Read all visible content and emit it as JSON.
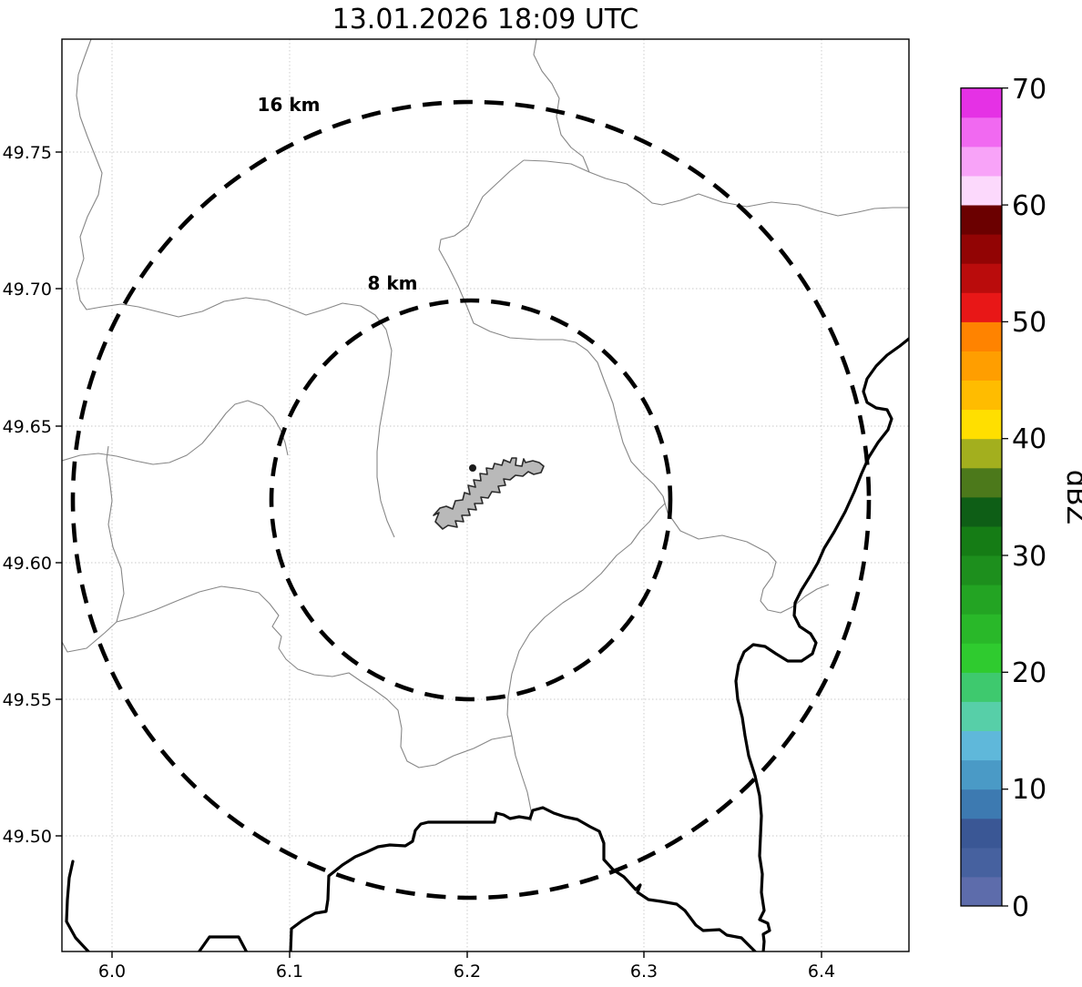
{
  "title": "13.01.2026 18:09 UTC",
  "map": {
    "x_axis": {
      "tick_labels": [
        "6.0",
        "6.1",
        "6.2",
        "6.3",
        "6.4"
      ]
    },
    "y_axis": {
      "tick_labels": [
        "49.75",
        "49.70",
        "49.65",
        "49.60",
        "49.55",
        "49.50"
      ]
    },
    "range_rings": {
      "outer_label": "16 km",
      "inner_label": "8 km"
    },
    "features": {
      "city_shape": "gray filled commune polygon near map center",
      "radar_site_marker": "small dark dot on city shape",
      "thick_lines": "country borders / Moselle river (black)",
      "thin_lines": "administrative boundaries (gray)"
    },
    "colors": {
      "city_fill": "#b9b9b9",
      "city_outline": "#2b2b2b",
      "admin_line": "#878787",
      "border_line": "#000000",
      "gridline": "#c9c9c9"
    }
  },
  "colorbar": {
    "label": "dBZ",
    "tick_labels": [
      "0",
      "10",
      "20",
      "30",
      "40",
      "50",
      "60",
      "70"
    ],
    "range": [
      0,
      70
    ],
    "segments": [
      {
        "from": 0.0,
        "to": 2.5,
        "color": "#5d6cab"
      },
      {
        "from": 2.5,
        "to": 5.0,
        "color": "#46619f"
      },
      {
        "from": 5.0,
        "to": 7.5,
        "color": "#3a5795"
      },
      {
        "from": 7.5,
        "to": 10.0,
        "color": "#3d7ab1"
      },
      {
        "from": 10.0,
        "to": 12.5,
        "color": "#4a9ac6"
      },
      {
        "from": 12.5,
        "to": 15.0,
        "color": "#5fb8da"
      },
      {
        "from": 15.0,
        "to": 17.5,
        "color": "#57cfa8"
      },
      {
        "from": 17.5,
        "to": 20.0,
        "color": "#3ec96e"
      },
      {
        "from": 20.0,
        "to": 22.5,
        "color": "#2fcb2f"
      },
      {
        "from": 22.5,
        "to": 25.0,
        "color": "#29b829"
      },
      {
        "from": 25.0,
        "to": 27.5,
        "color": "#23a423"
      },
      {
        "from": 27.5,
        "to": 30.0,
        "color": "#1d8f1d"
      },
      {
        "from": 30.0,
        "to": 32.5,
        "color": "#157c15"
      },
      {
        "from": 32.5,
        "to": 35.0,
        "color": "#0e5e16"
      },
      {
        "from": 35.0,
        "to": 37.5,
        "color": "#4c791b"
      },
      {
        "from": 37.5,
        "to": 40.0,
        "color": "#a3af1e"
      },
      {
        "from": 40.0,
        "to": 42.5,
        "color": "#ffdf00"
      },
      {
        "from": 42.5,
        "to": 45.0,
        "color": "#ffbc00"
      },
      {
        "from": 45.0,
        "to": 47.5,
        "color": "#ff9e00"
      },
      {
        "from": 47.5,
        "to": 50.0,
        "color": "#ff8300"
      },
      {
        "from": 50.0,
        "to": 52.5,
        "color": "#e81717"
      },
      {
        "from": 52.5,
        "to": 55.0,
        "color": "#ba0c0c"
      },
      {
        "from": 55.0,
        "to": 57.5,
        "color": "#920404"
      },
      {
        "from": 57.5,
        "to": 60.0,
        "color": "#6b0000"
      },
      {
        "from": 60.0,
        "to": 62.5,
        "color": "#fcd9fc"
      },
      {
        "from": 62.5,
        "to": 65.0,
        "color": "#f8a3f8"
      },
      {
        "from": 65.0,
        "to": 67.5,
        "color": "#f169f1"
      },
      {
        "from": 67.5,
        "to": 70.0,
        "color": "#e531e5"
      }
    ]
  },
  "chart_data": {
    "type": "map",
    "title": "13.01.2026 18:09 UTC",
    "x_axis": {
      "ticks": [
        6.0,
        6.1,
        6.2,
        6.3,
        6.4
      ],
      "range": [
        5.972,
        6.449
      ]
    },
    "y_axis": {
      "ticks": [
        49.75,
        49.7,
        49.65,
        49.6,
        49.55,
        49.5
      ],
      "range": [
        49.458,
        49.791
      ]
    },
    "colorbar": {
      "label": "dBZ",
      "range": [
        0,
        70
      ],
      "tick_step": 10,
      "n_segments": 28
    },
    "range_rings_km": [
      8,
      16
    ],
    "ring_center": {
      "lon": 6.202,
      "lat": 49.623
    },
    "radar_echoes": "none visible",
    "grid": true,
    "legend_position": "right colorbar"
  }
}
